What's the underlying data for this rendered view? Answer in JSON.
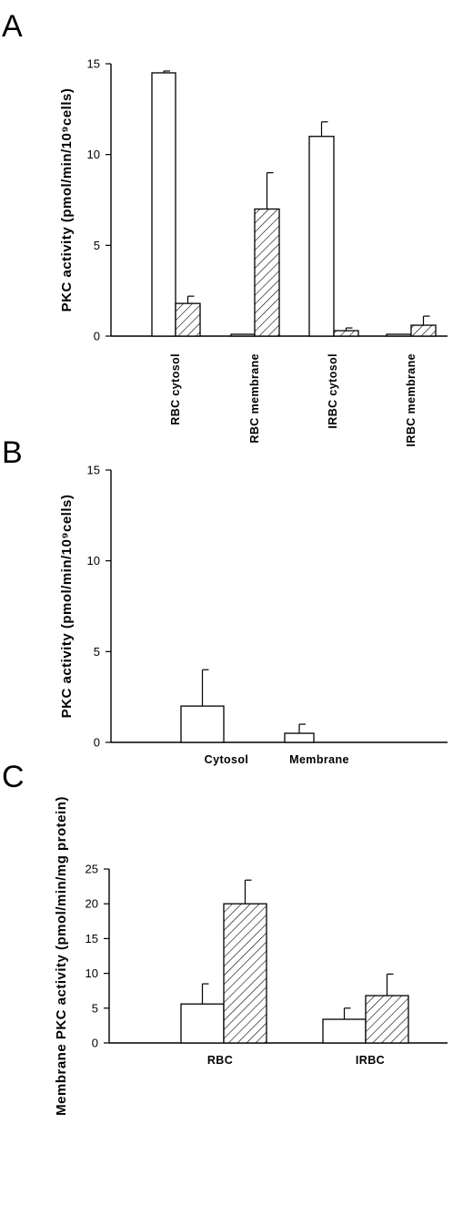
{
  "chart_data": [
    {
      "panel": "A",
      "type": "bar",
      "ylabel": "PKC activity (pmol/min/10⁹cells)",
      "ylim": [
        0,
        15
      ],
      "yticks": [
        0,
        5,
        10,
        15
      ],
      "categories": [
        "RBC cytosol",
        "RBC membrane",
        "IRBC cytosol",
        "IRBC membrane"
      ],
      "series": [
        {
          "pattern": "open",
          "values": [
            14.5,
            0.1,
            11.0,
            0.1
          ],
          "errors": [
            0.1,
            0,
            0.8,
            0
          ]
        },
        {
          "pattern": "hatched",
          "values": [
            1.8,
            7.0,
            0.3,
            0.6
          ],
          "errors": [
            0.4,
            2.0,
            0.15,
            0.5
          ]
        }
      ]
    },
    {
      "panel": "B",
      "type": "bar",
      "ylabel": "PKC activity (pmol/min/10⁹cells)",
      "ylim": [
        0,
        15
      ],
      "yticks": [
        0,
        5,
        10,
        15
      ],
      "categories": [
        "Cytosol",
        "Membrane"
      ],
      "series": [
        {
          "pattern": "open",
          "values": [
            2.0,
            0.5
          ],
          "errors": [
            2.0,
            0.5
          ]
        }
      ]
    },
    {
      "panel": "C",
      "type": "bar",
      "ylabel": "Membrane PKC activity (pmol/min/mg protein)",
      "ylim": [
        0,
        25
      ],
      "yticks": [
        0,
        5,
        10,
        15,
        20,
        25
      ],
      "categories": [
        "RBC",
        "IRBC"
      ],
      "series": [
        {
          "pattern": "open",
          "values": [
            5.6,
            3.4
          ],
          "errors": [
            2.9,
            1.6
          ]
        },
        {
          "pattern": "hatched",
          "values": [
            20.0,
            6.8
          ],
          "errors": [
            3.4,
            3.1
          ]
        }
      ]
    }
  ]
}
